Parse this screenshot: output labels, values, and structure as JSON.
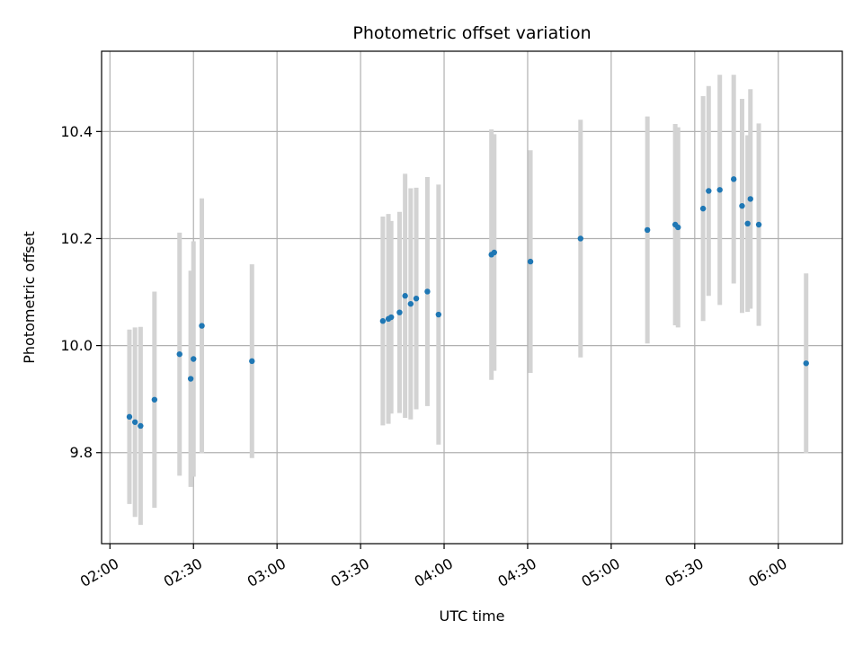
{
  "chart_data": {
    "type": "scatter",
    "title": "Photometric offset variation",
    "xlabel": "UTC time",
    "ylabel": "Photometric offset",
    "xlim": [
      "01:57",
      "06:23"
    ],
    "ylim": [
      9.63,
      10.55
    ],
    "grid": true,
    "error_bars": true,
    "x_ticks": [
      "02:00",
      "02:30",
      "03:00",
      "03:30",
      "04:00",
      "04:30",
      "05:00",
      "05:30",
      "06:00"
    ],
    "y_ticks": [
      9.8,
      10.0,
      10.2,
      10.4
    ],
    "colors": {
      "points": "#1f77b4",
      "error_bars": "#d3d3d3",
      "grid": "#b0b0b0"
    },
    "points": [
      {
        "x": "02:07",
        "y": 9.867,
        "yerr": 0.163
      },
      {
        "x": "02:09",
        "y": 9.857,
        "yerr": 0.177
      },
      {
        "x": "02:11",
        "y": 9.85,
        "yerr": 0.185
      },
      {
        "x": "02:16",
        "y": 9.899,
        "yerr": 0.202
      },
      {
        "x": "02:25",
        "y": 9.984,
        "yerr": 0.227
      },
      {
        "x": "02:29",
        "y": 9.938,
        "yerr": 0.202
      },
      {
        "x": "02:30",
        "y": 9.975,
        "yerr": 0.22
      },
      {
        "x": "02:33",
        "y": 10.037,
        "yerr": 0.238
      },
      {
        "x": "02:51",
        "y": 9.971,
        "yerr": 0.181
      },
      {
        "x": "03:38",
        "y": 10.046,
        "yerr": 0.195
      },
      {
        "x": "03:40",
        "y": 10.05,
        "yerr": 0.196
      },
      {
        "x": "03:41",
        "y": 10.053,
        "yerr": 0.18
      },
      {
        "x": "03:44",
        "y": 10.062,
        "yerr": 0.188
      },
      {
        "x": "03:46",
        "y": 10.093,
        "yerr": 0.228
      },
      {
        "x": "03:48",
        "y": 10.078,
        "yerr": 0.216
      },
      {
        "x": "03:50",
        "y": 10.088,
        "yerr": 0.207
      },
      {
        "x": "03:54",
        "y": 10.101,
        "yerr": 0.214
      },
      {
        "x": "03:58",
        "y": 10.058,
        "yerr": 0.243
      },
      {
        "x": "04:17",
        "y": 10.17,
        "yerr": 0.234
      },
      {
        "x": "04:18",
        "y": 10.174,
        "yerr": 0.221
      },
      {
        "x": "04:31",
        "y": 10.157,
        "yerr": 0.208
      },
      {
        "x": "04:49",
        "y": 10.2,
        "yerr": 0.222
      },
      {
        "x": "05:13",
        "y": 10.216,
        "yerr": 0.212
      },
      {
        "x": "05:23",
        "y": 10.226,
        "yerr": 0.188
      },
      {
        "x": "05:24",
        "y": 10.221,
        "yerr": 0.187
      },
      {
        "x": "05:33",
        "y": 10.256,
        "yerr": 0.21
      },
      {
        "x": "05:35",
        "y": 10.289,
        "yerr": 0.196
      },
      {
        "x": "05:39",
        "y": 10.291,
        "yerr": 0.215
      },
      {
        "x": "05:44",
        "y": 10.311,
        "yerr": 0.195
      },
      {
        "x": "05:47",
        "y": 10.261,
        "yerr": 0.2
      },
      {
        "x": "05:49",
        "y": 10.228,
        "yerr": 0.165
      },
      {
        "x": "05:50",
        "y": 10.274,
        "yerr": 0.205
      },
      {
        "x": "05:53",
        "y": 10.226,
        "yerr": 0.189
      },
      {
        "x": "06:10",
        "y": 9.967,
        "yerr": 0.168
      }
    ]
  }
}
